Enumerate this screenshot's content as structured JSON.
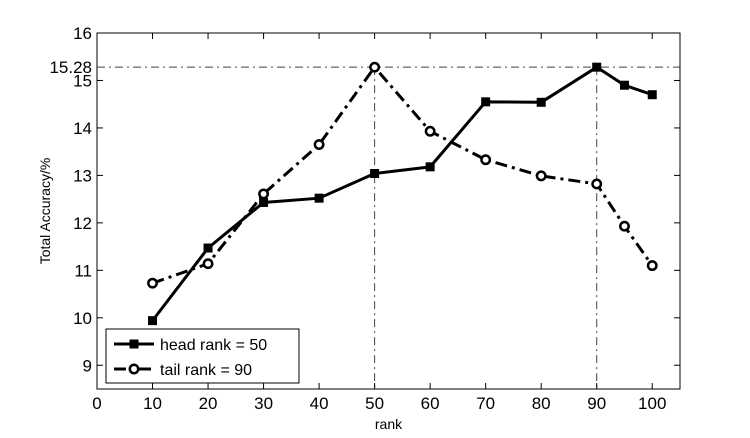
{
  "chart_data": {
    "type": "line",
    "xlabel": "rank",
    "ylabel": "Total Accuracy/%",
    "xlim": [
      0,
      105
    ],
    "ylim": [
      8.5,
      16
    ],
    "xticks": [
      "0",
      "10",
      "20",
      "30",
      "40",
      "50",
      "60",
      "70",
      "80",
      "90",
      "100"
    ],
    "yticks": [
      "9",
      "10",
      "11",
      "12",
      "13",
      "14",
      "15",
      "16"
    ],
    "grid": false,
    "legend": "bottom-left",
    "series": [
      {
        "name": "head rank = 50",
        "color": "#000000",
        "marker": "square",
        "linestyle": "solid",
        "x": [
          10,
          20,
          30,
          40,
          50,
          60,
          70,
          80,
          90,
          95,
          100
        ],
        "y": [
          9.94,
          11.47,
          12.43,
          12.52,
          13.04,
          13.18,
          14.55,
          14.54,
          15.28,
          14.9,
          14.7
        ]
      },
      {
        "name": "tail rank = 90",
        "color": "#000000",
        "marker": "circle",
        "linestyle": "dashdot",
        "x": [
          10,
          20,
          30,
          40,
          50,
          60,
          70,
          80,
          90,
          95,
          100
        ],
        "y": [
          10.73,
          11.14,
          12.61,
          13.65,
          15.28,
          13.93,
          13.33,
          12.99,
          12.82,
          11.93,
          11.1
        ]
      }
    ],
    "annotations": [
      {
        "type": "hline",
        "y": 15.28,
        "label": "15.28"
      },
      {
        "type": "vline",
        "x": 50
      },
      {
        "type": "vline",
        "x": 90
      }
    ]
  }
}
